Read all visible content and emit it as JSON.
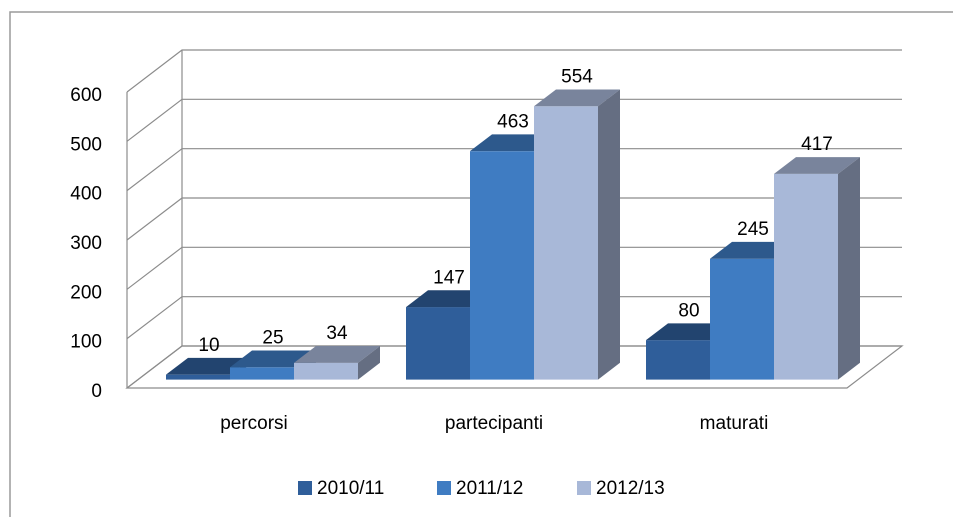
{
  "chart_data": {
    "type": "bar3d",
    "categories": [
      "percorsi",
      "partecipanti",
      "maturati"
    ],
    "series": [
      {
        "name": "2010/11",
        "color": "#2f5e9a",
        "values": [
          10,
          147,
          80
        ]
      },
      {
        "name": "2011/12",
        "color": "#3f7cc2",
        "values": [
          25,
          463,
          245
        ]
      },
      {
        "name": "2012/13",
        "color": "#a8b8d8",
        "values": [
          34,
          554,
          417
        ]
      }
    ],
    "ylim": [
      0,
      600
    ],
    "yticks": [
      0,
      100,
      200,
      300,
      400,
      500,
      600
    ],
    "grid": true,
    "legend": "bottom"
  }
}
